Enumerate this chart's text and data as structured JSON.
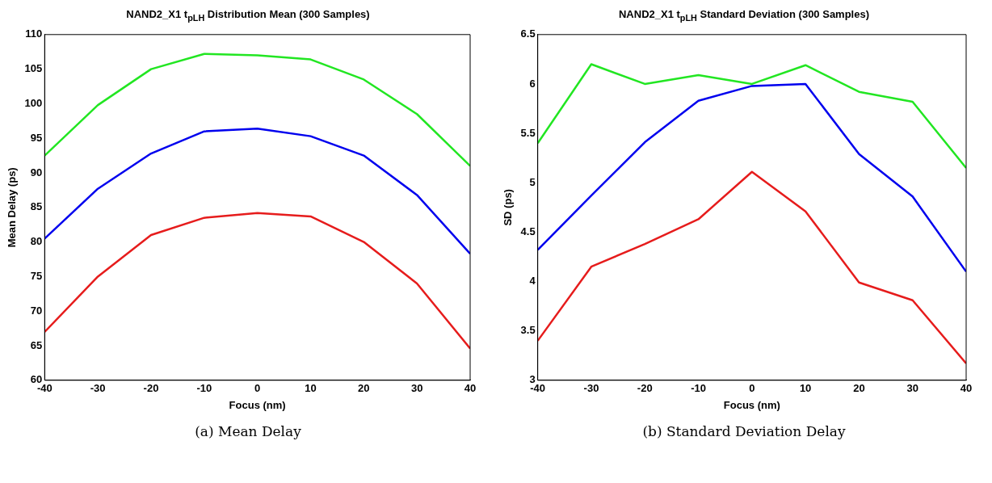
{
  "chart_data": [
    {
      "type": "line",
      "title": "NAND2_X1 t$_{pLH}$ Distribution Mean (300 Samples)",
      "xlabel": "Focus (nm)",
      "ylabel": "Mean Delay (ps)",
      "x": [
        -40,
        -30,
        -20,
        -10,
        0,
        10,
        20,
        30,
        40
      ],
      "series": [
        {
          "color": "#22e622",
          "values": [
            92.5,
            99.8,
            105,
            107.2,
            107,
            106.4,
            103.5,
            98.5,
            91
          ]
        },
        {
          "color": "#0000ee",
          "values": [
            80.5,
            87.7,
            92.8,
            96,
            96.4,
            95.3,
            92.5,
            86.8,
            78.3
          ]
        },
        {
          "color": "#e61c1c",
          "values": [
            67,
            75,
            81,
            83.5,
            84.2,
            83.7,
            80,
            74,
            64.6
          ]
        }
      ],
      "xlim": [
        -40,
        40
      ],
      "xticks": [
        -40,
        -30,
        -20,
        -10,
        0,
        10,
        20,
        30,
        40
      ],
      "ylim": [
        60,
        110
      ],
      "yticks": [
        60,
        65,
        70,
        75,
        80,
        85,
        90,
        95,
        100,
        105,
        110
      ],
      "grid": false,
      "legend": false,
      "marker": "none",
      "line_style": "solid",
      "annotations": [
        "(a) Mean Delay"
      ]
    },
    {
      "type": "line",
      "title": "NAND2_X1 t$_{pLH}$ Standard Deviation (300 Samples)",
      "xlabel": "Focus (nm)",
      "ylabel": "SD (ps)",
      "x": [
        -40,
        -30,
        -20,
        -10,
        0,
        10,
        20,
        30,
        40
      ],
      "series": [
        {
          "color": "#22e622",
          "values": [
            5.4,
            6.2,
            6.0,
            6.09,
            6.0,
            6.19,
            5.92,
            5.82,
            5.15
          ]
        },
        {
          "color": "#0000ee",
          "values": [
            4.32,
            4.87,
            5.41,
            5.83,
            5.98,
            6.0,
            5.29,
            4.86,
            4.1
          ]
        },
        {
          "color": "#e61c1c",
          "values": [
            3.4,
            4.15,
            4.38,
            4.63,
            5.11,
            4.71,
            3.99,
            3.81,
            3.17
          ]
        }
      ],
      "xlim": [
        -40,
        40
      ],
      "xticks": [
        -40,
        -30,
        -20,
        -10,
        0,
        10,
        20,
        30,
        40
      ],
      "ylim": [
        3,
        6.5
      ],
      "yticks": [
        3,
        3.5,
        4,
        4.5,
        5,
        5.5,
        6,
        6.5
      ],
      "grid": false,
      "legend": false,
      "marker": "none",
      "line_style": "solid",
      "annotations": [
        "(b) Standard Deviation Delay"
      ]
    }
  ]
}
